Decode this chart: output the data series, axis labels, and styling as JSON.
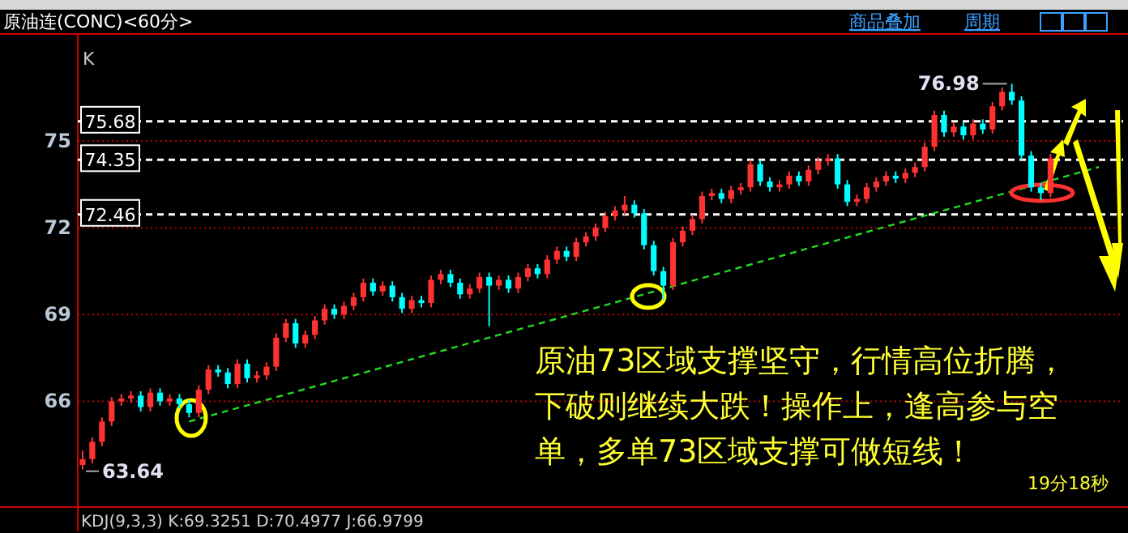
{
  "chart_data": {
    "type": "candlestick",
    "title": "原油连(CONC)<60分>",
    "categories": [
      null,
      null,
      null,
      null,
      null,
      null,
      null,
      null,
      null,
      null,
      null,
      null,
      null,
      null,
      null,
      null,
      null,
      null,
      null,
      null,
      null,
      null,
      null,
      null,
      null,
      null,
      null,
      null,
      null,
      null,
      null,
      null,
      null,
      null,
      null,
      null,
      null,
      null,
      null,
      null,
      null,
      null,
      null,
      null,
      null,
      null,
      null,
      null,
      null,
      null,
      null,
      null,
      null,
      null,
      null,
      null,
      null,
      null,
      null,
      null,
      null,
      null,
      null,
      null,
      null,
      null,
      null,
      null,
      null,
      null,
      null,
      null,
      null,
      null,
      null,
      null,
      null,
      null,
      null,
      null,
      null,
      null,
      null,
      null,
      null,
      null,
      null,
      null,
      null,
      null,
      null,
      null,
      null,
      null,
      null,
      null,
      null,
      null,
      null,
      null,
      null,
      null,
      null,
      null,
      null,
      null,
      null,
      null
    ],
    "ohlc": [
      [
        63.8,
        64.3,
        63.64,
        64.0
      ],
      [
        64.0,
        64.75,
        63.85,
        64.6
      ],
      [
        64.6,
        65.45,
        64.45,
        65.3
      ],
      [
        65.3,
        66.15,
        65.15,
        66.0
      ],
      [
        66.0,
        66.25,
        65.85,
        66.1
      ],
      [
        66.1,
        66.35,
        65.95,
        66.2
      ],
      [
        66.2,
        66.35,
        65.65,
        65.8
      ],
      [
        65.8,
        66.45,
        65.65,
        66.3
      ],
      [
        66.3,
        66.45,
        65.85,
        66.0
      ],
      [
        66.0,
        66.25,
        65.85,
        66.1
      ],
      [
        66.1,
        66.25,
        65.75,
        65.9
      ],
      [
        65.9,
        66.05,
        65.45,
        65.6
      ],
      [
        65.6,
        66.55,
        65.45,
        66.4
      ],
      [
        66.4,
        67.25,
        66.25,
        67.1
      ],
      [
        67.1,
        67.25,
        66.85,
        67.0
      ],
      [
        67.0,
        67.15,
        66.45,
        66.6
      ],
      [
        66.6,
        67.45,
        66.45,
        67.3
      ],
      [
        67.3,
        67.45,
        66.65,
        66.8
      ],
      [
        66.8,
        67.05,
        66.65,
        66.9
      ],
      [
        66.9,
        67.35,
        66.75,
        67.2
      ],
      [
        67.2,
        68.35,
        67.05,
        68.2
      ],
      [
        68.2,
        68.85,
        68.05,
        68.7
      ],
      [
        68.7,
        68.85,
        67.85,
        68.0
      ],
      [
        68.0,
        68.45,
        67.85,
        68.3
      ],
      [
        68.3,
        68.95,
        68.15,
        68.8
      ],
      [
        68.8,
        69.35,
        68.65,
        69.2
      ],
      [
        69.2,
        69.35,
        68.85,
        69.0
      ],
      [
        69.0,
        69.45,
        68.85,
        69.3
      ],
      [
        69.3,
        69.75,
        69.15,
        69.6
      ],
      [
        69.6,
        70.25,
        69.45,
        70.1
      ],
      [
        70.1,
        70.25,
        69.65,
        69.8
      ],
      [
        69.8,
        70.15,
        69.65,
        70.0
      ],
      [
        70.0,
        70.15,
        69.45,
        69.6
      ],
      [
        69.6,
        69.75,
        69.05,
        69.2
      ],
      [
        69.2,
        69.65,
        69.05,
        69.5
      ],
      [
        69.5,
        69.65,
        69.25,
        69.4
      ],
      [
        69.4,
        70.35,
        69.25,
        70.2
      ],
      [
        70.2,
        70.55,
        70.05,
        70.4
      ],
      [
        70.4,
        70.55,
        69.95,
        70.1
      ],
      [
        70.1,
        70.25,
        69.55,
        69.7
      ],
      [
        69.7,
        70.05,
        69.55,
        69.9
      ],
      [
        69.9,
        70.45,
        69.75,
        70.3
      ],
      [
        70.3,
        70.45,
        68.6,
        70.0
      ],
      [
        70.0,
        70.35,
        69.85,
        70.2
      ],
      [
        70.2,
        70.35,
        69.75,
        69.9
      ],
      [
        69.9,
        70.45,
        69.75,
        70.3
      ],
      [
        70.3,
        70.75,
        70.15,
        70.6
      ],
      [
        70.6,
        70.75,
        70.25,
        70.4
      ],
      [
        70.4,
        71.05,
        70.25,
        70.9
      ],
      [
        70.9,
        71.35,
        70.75,
        71.2
      ],
      [
        71.2,
        71.35,
        70.85,
        71.0
      ],
      [
        71.0,
        71.65,
        70.85,
        71.5
      ],
      [
        71.5,
        71.85,
        71.35,
        71.7
      ],
      [
        71.7,
        72.15,
        71.55,
        72.0
      ],
      [
        72.0,
        72.55,
        71.85,
        72.4
      ],
      [
        72.4,
        72.75,
        72.25,
        72.6
      ],
      [
        72.6,
        73.1,
        72.45,
        72.8
      ],
      [
        72.8,
        72.95,
        72.35,
        72.5
      ],
      [
        72.5,
        72.65,
        71.25,
        71.4
      ],
      [
        71.4,
        71.55,
        70.35,
        70.5
      ],
      [
        70.5,
        70.65,
        69.5,
        70.0
      ],
      [
        70.0,
        71.65,
        69.85,
        71.5
      ],
      [
        71.5,
        72.05,
        71.35,
        71.9
      ],
      [
        71.9,
        72.45,
        71.75,
        72.3
      ],
      [
        72.3,
        73.25,
        72.15,
        73.1
      ],
      [
        73.1,
        73.35,
        72.95,
        73.2
      ],
      [
        73.2,
        73.35,
        72.85,
        73.0
      ],
      [
        73.0,
        73.45,
        72.85,
        73.3
      ],
      [
        73.3,
        73.55,
        73.15,
        73.4
      ],
      [
        73.4,
        74.35,
        73.25,
        74.2
      ],
      [
        74.2,
        74.35,
        73.45,
        73.6
      ],
      [
        73.6,
        73.75,
        73.25,
        73.4
      ],
      [
        73.4,
        73.65,
        73.25,
        73.5
      ],
      [
        73.5,
        73.95,
        73.35,
        73.8
      ],
      [
        73.8,
        73.95,
        73.45,
        73.6
      ],
      [
        73.6,
        74.15,
        73.45,
        74.0
      ],
      [
        74.0,
        74.45,
        73.85,
        74.3
      ],
      [
        74.3,
        74.55,
        74.15,
        74.4
      ],
      [
        74.4,
        74.55,
        73.35,
        73.5
      ],
      [
        73.5,
        73.65,
        72.75,
        72.9
      ],
      [
        72.9,
        73.15,
        72.75,
        73.0
      ],
      [
        73.0,
        73.55,
        72.85,
        73.4
      ],
      [
        73.4,
        73.75,
        73.25,
        73.6
      ],
      [
        73.6,
        73.95,
        73.45,
        73.8
      ],
      [
        73.8,
        73.95,
        73.55,
        73.7
      ],
      [
        73.7,
        74.05,
        73.55,
        73.9
      ],
      [
        73.9,
        74.25,
        73.75,
        74.1
      ],
      [
        74.1,
        74.95,
        73.95,
        74.8
      ],
      [
        74.8,
        76.05,
        74.65,
        75.9
      ],
      [
        75.9,
        76.05,
        75.15,
        75.3
      ],
      [
        75.3,
        75.65,
        75.15,
        75.5
      ],
      [
        75.5,
        75.65,
        75.05,
        75.2
      ],
      [
        75.2,
        75.75,
        75.05,
        75.6
      ],
      [
        75.6,
        75.75,
        75.25,
        75.4
      ],
      [
        75.4,
        76.35,
        75.25,
        76.2
      ],
      [
        76.2,
        76.85,
        76.05,
        76.7
      ],
      [
        76.7,
        76.98,
        76.25,
        76.4
      ],
      [
        76.4,
        76.55,
        74.35,
        74.5
      ],
      [
        74.5,
        74.65,
        73.25,
        73.4
      ],
      [
        73.4,
        73.55,
        72.95,
        73.2
      ],
      [
        73.2,
        74.55,
        73.05,
        74.4
      ],
      null,
      null,
      null,
      null,
      null,
      null,
      null
    ],
    "colors": [
      "#ff3232",
      "#ff3232",
      "#ff3232",
      "#ff3232",
      "#ff3232",
      "#ff3232",
      "#00ffff",
      "#ff3232",
      "#00ffff",
      "#ff3232",
      "#00ffff",
      "#00ffff",
      "#ff3232",
      "#ff3232",
      "#00ffff",
      "#00ffff",
      "#ff3232",
      "#00ffff",
      "#ff3232",
      "#ff3232",
      "#ff3232",
      "#ff3232",
      "#00ffff",
      "#ff3232",
      "#ff3232",
      "#ff3232",
      "#00ffff",
      "#ff3232",
      "#ff3232",
      "#ff3232",
      "#00ffff",
      "#ff3232",
      "#00ffff",
      "#00ffff",
      "#ff3232",
      "#00ffff",
      "#ff3232",
      "#ff3232",
      "#00ffff",
      "#00ffff",
      "#ff3232",
      "#ff3232",
      "#00ffff",
      "#ff3232",
      "#00ffff",
      "#ff3232",
      "#ff3232",
      "#00ffff",
      "#ff3232",
      "#ff3232",
      "#00ffff",
      "#ff3232",
      "#ff3232",
      "#ff3232",
      "#ff3232",
      "#ff3232",
      "#ff3232",
      "#00ffff",
      "#00ffff",
      "#00ffff",
      "#00ffff",
      "#ff3232",
      "#ff3232",
      "#ff3232",
      "#ff3232",
      "#ff3232",
      "#00ffff",
      "#ff3232",
      "#ff3232",
      "#ff3232",
      "#00ffff",
      "#00ffff",
      "#ff3232",
      "#ff3232",
      "#00ffff",
      "#ff3232",
      "#ff3232",
      "#ff3232",
      "#00ffff",
      "#00ffff",
      "#ff3232",
      "#ff3232",
      "#ff3232",
      "#ff3232",
      "#00ffff",
      "#ff3232",
      "#ff3232",
      "#ff3232",
      "#ff3232",
      "#00ffff",
      "#ff3232",
      "#00ffff",
      "#ff3232",
      "#00ffff",
      "#ff3232",
      "#ff3232",
      "#00ffff",
      "#00ffff",
      "#00ffff",
      "#00ffff",
      "#ff3232",
      null,
      null,
      null,
      null,
      null,
      null,
      null
    ],
    "series": [
      {
        "type": "line",
        "color": "#22dd22",
        "line_style": "dashed",
        "values": [
          null,
          null,
          null,
          null,
          null,
          null,
          null,
          null,
          null,
          null,
          null,
          65.3,
          null,
          null,
          null,
          null,
          null,
          null,
          null,
          null,
          null,
          null,
          null,
          null,
          null,
          null,
          null,
          null,
          null,
          null,
          null,
          null,
          null,
          null,
          null,
          null,
          null,
          null,
          null,
          null,
          null,
          null,
          null,
          null,
          null,
          null,
          null,
          null,
          null,
          null,
          null,
          null,
          null,
          null,
          null,
          null,
          null,
          null,
          null,
          null,
          null,
          null,
          null,
          null,
          null,
          null,
          null,
          null,
          null,
          null,
          null,
          null,
          null,
          null,
          null,
          null,
          null,
          null,
          null,
          null,
          null,
          null,
          null,
          null,
          null,
          null,
          null,
          null,
          null,
          null,
          null,
          null,
          null,
          null,
          null,
          null,
          null,
          null,
          null,
          null,
          null,
          null,
          null,
          null,
          null,
          74.1,
          null,
          null
        ]
      }
    ],
    "ylim": [
      62.4,
      78.7
    ],
    "yticks": [
      66,
      69,
      72,
      75
    ],
    "grid": "y",
    "ref_lines": [
      {
        "axis": "y",
        "value": 75.68,
        "label": "75.68",
        "color": "#ffffff",
        "line_style": "dashed"
      },
      {
        "axis": "y",
        "value": 74.35,
        "label": "74.35",
        "color": "#ffffff",
        "line_style": "dashed"
      },
      {
        "axis": "y",
        "value": 72.46,
        "label": "72.46",
        "color": "#ffffff",
        "line_style": "dashed"
      }
    ],
    "annotations": [
      "76.98",
      "63.64",
      "K",
      "商品叠加",
      "周期",
      "原油73区域支撑坚守，行情高位折腾，下破则继续大跌！操作上，逢高参与空单，多单73区域支撑可做短线！",
      "19分18秒",
      "KDJ(9,3,3)  K:69.3251  D:70.4977  J:66.9799"
    ]
  }
}
